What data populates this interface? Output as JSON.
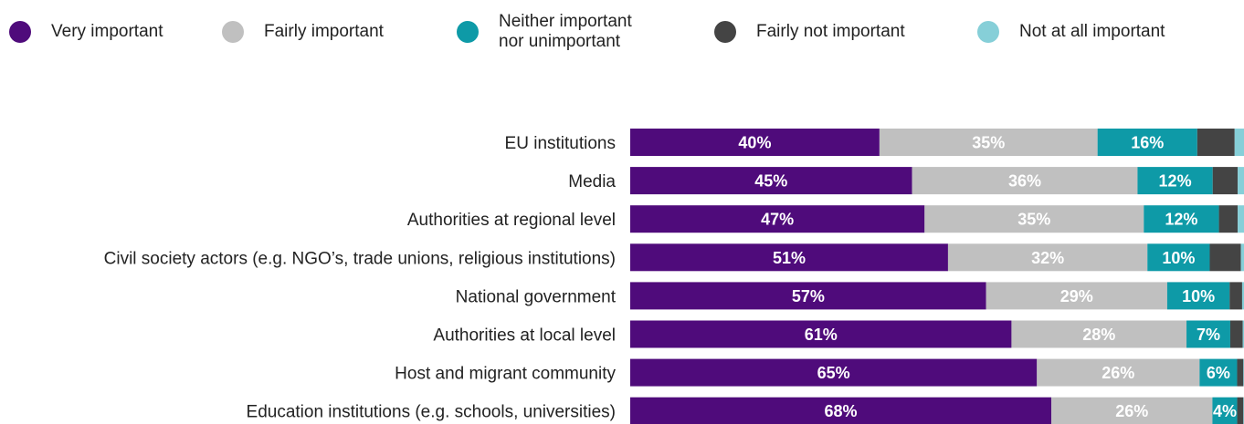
{
  "chart_data": {
    "type": "bar",
    "orientation": "horizontal",
    "stacked": true,
    "categories": [
      "EU institutions",
      "Media",
      "Authorities at regional level",
      "Civil society actors (e.g. NGO’s, trade unions, religious institutions)",
      "National government",
      "Authorities at local level",
      "Host and migrant community",
      "Education institutions (e.g. schools, universities)"
    ],
    "series": [
      {
        "name": "Very important",
        "color": "#4f0b7b",
        "label_color": "#ffffff",
        "values": [
          40,
          45,
          47,
          51,
          57,
          61,
          65,
          68
        ]
      },
      {
        "name": "Fairly important",
        "color": "#c0c0c0",
        "label_color": "#ffffff",
        "values": [
          35,
          36,
          35,
          32,
          29,
          28,
          26,
          26
        ]
      },
      {
        "name": "Neither important\nnor unimportant",
        "color": "#0e9aa7",
        "label_color": "#ffffff",
        "values": [
          16,
          12,
          12,
          10,
          10,
          7,
          6,
          4
        ]
      },
      {
        "name": "Fairly not important",
        "color": "#444444",
        "label_color": "#ffffff",
        "values": [
          6,
          4,
          3,
          5,
          2,
          2,
          1,
          1
        ]
      },
      {
        "name": "Not at all important",
        "color": "#86cfd8",
        "label_color": "#ffffff",
        "values": [
          1.5,
          1,
          1,
          0.5,
          0.3,
          0.2,
          0.1,
          0.1
        ]
      }
    ],
    "labels_shown": [
      [
        true,
        true,
        true,
        false,
        false
      ],
      [
        true,
        true,
        true,
        false,
        false
      ],
      [
        true,
        true,
        true,
        false,
        false
      ],
      [
        true,
        true,
        true,
        false,
        false
      ],
      [
        true,
        true,
        true,
        false,
        false
      ],
      [
        true,
        true,
        true,
        false,
        false
      ],
      [
        true,
        true,
        true,
        false,
        false
      ],
      [
        true,
        true,
        true,
        false,
        false
      ]
    ],
    "value_suffix": "%",
    "xlim": [
      0,
      100
    ],
    "grid": false,
    "legend_position": "top"
  }
}
